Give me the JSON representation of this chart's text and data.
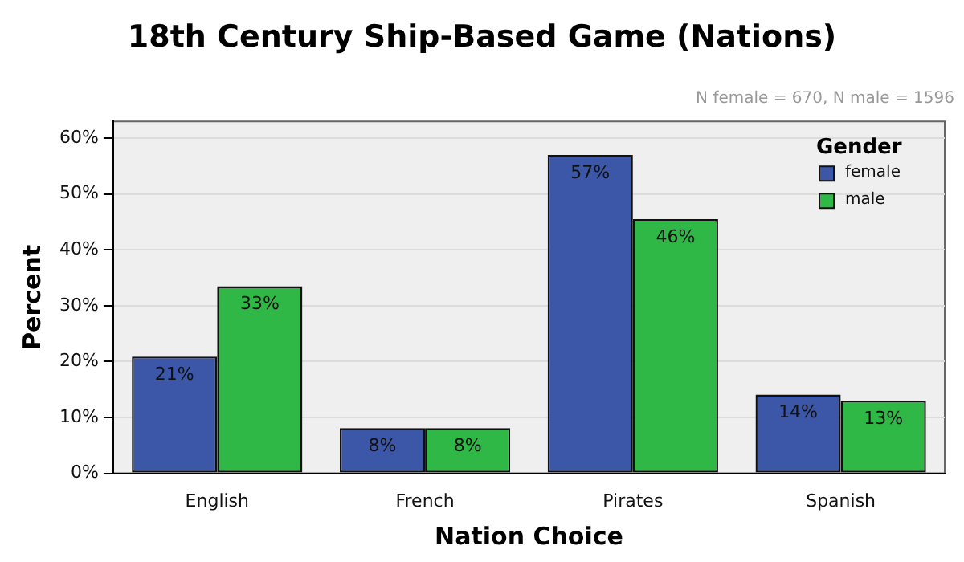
{
  "chart_data": {
    "type": "bar",
    "title": "18th Century Ship-Based Game (Nations)",
    "xlabel": "Nation Choice",
    "ylabel": "Percent",
    "legend_title": "Gender",
    "annotations": [
      "N female = 670, N male = 1596"
    ],
    "categories": [
      "English",
      "French",
      "Pirates",
      "Spanish"
    ],
    "series": [
      {
        "name": "female",
        "color": "#3c57a8",
        "values": [
          20.9,
          8.1,
          57.0,
          14.1
        ],
        "value_labels": [
          "21%",
          "8%",
          "57%",
          "14%"
        ]
      },
      {
        "name": "male",
        "color": "#2fb846",
        "values": [
          33.5,
          8.1,
          45.5,
          13.0
        ],
        "value_labels": [
          "33%",
          "8%",
          "46%",
          "13%"
        ]
      }
    ],
    "ylim": [
      0,
      63
    ],
    "yticks": [
      {
        "value": 0,
        "label": "0%"
      },
      {
        "value": 10,
        "label": "10%"
      },
      {
        "value": 20,
        "label": "20%"
      },
      {
        "value": 30,
        "label": "30%"
      },
      {
        "value": 40,
        "label": "40%"
      },
      {
        "value": 50,
        "label": "50%"
      },
      {
        "value": 60,
        "label": "60%"
      }
    ],
    "grid": "y",
    "legend": "top right"
  }
}
